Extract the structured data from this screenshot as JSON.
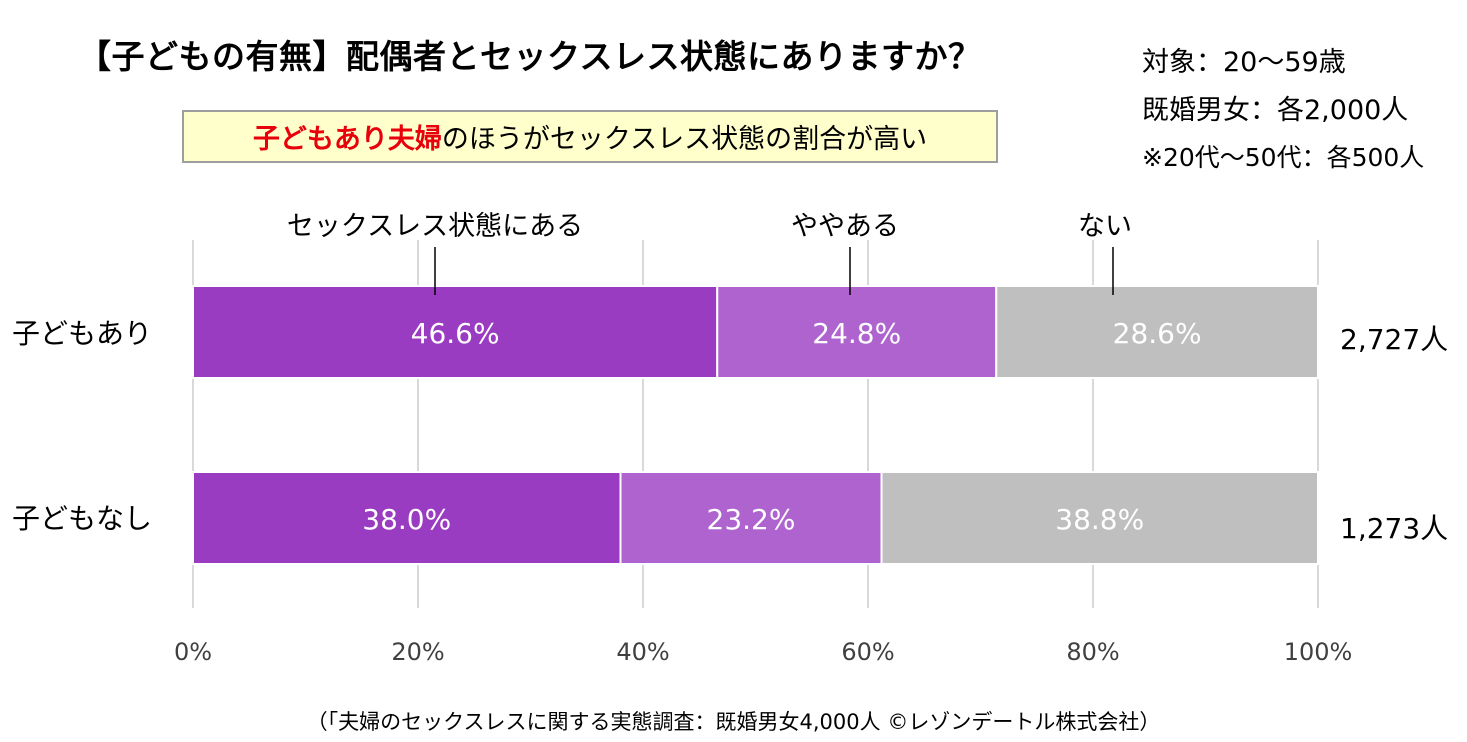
{
  "title": "【子どもの有無】配偶者とセックスレス状態にありますか？",
  "meta": {
    "target": "対象：20〜59歳",
    "sample": "既婚男女：各2,000人",
    "note": "※20代〜50代：各500人"
  },
  "highlight": {
    "red_text": "子どもあり夫婦",
    "rest_text": "のほうがセックスレス状態の割合が高い"
  },
  "source": "（「夫婦のセックスレスに関する実態調査：既婚男女4,000人 ©レゾンデートル株式会社）",
  "chart_data": {
    "type": "bar",
    "orientation": "horizontal",
    "stacked": true,
    "percent": true,
    "categories": [
      "子どもあり",
      "子どもなし"
    ],
    "counts": [
      "2,727人",
      "1,273人"
    ],
    "series": [
      {
        "name": "セックスレス状態にある",
        "values": [
          46.6,
          38.0
        ],
        "labels": [
          "46.6%",
          "38.0%"
        ],
        "color": "#9a3cc1"
      },
      {
        "name": "ややある",
        "values": [
          24.8,
          23.2
        ],
        "labels": [
          "24.8%",
          "23.2%"
        ],
        "color": "#ae63cf"
      },
      {
        "name": "ない",
        "values": [
          28.6,
          38.8
        ],
        "labels": [
          "28.6%",
          "38.8%"
        ],
        "color": "#bfbfbf"
      }
    ],
    "xlim": [
      0,
      100
    ],
    "xticks": [
      "0%",
      "20%",
      "40%",
      "60%",
      "80%",
      "100%"
    ],
    "grid": true,
    "legend": "top, labels above the first bar with pointer lines"
  }
}
